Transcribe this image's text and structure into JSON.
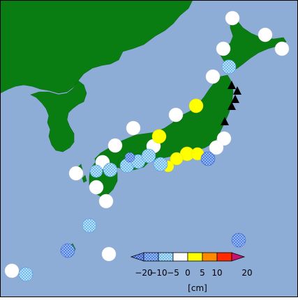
{
  "map": {
    "colors": {
      "ocean": "#8dacd6",
      "land": "#0a7d12",
      "frame": "#000000",
      "triangle": "#000000"
    },
    "legend": {
      "bins": [
        {
          "range": "< -20",
          "color": "#1f3fae",
          "pattern": "hatch-dense"
        },
        {
          "range": "-20 to -10",
          "color": "#3d6fe0",
          "pattern": "hatch"
        },
        {
          "range": "-10 to -5",
          "color": "#7fc4f0",
          "pattern": "hatch-light"
        },
        {
          "range": "-5 to 0",
          "color": "#ffffff",
          "pattern": "solid"
        },
        {
          "range": "0 to 5",
          "color": "#ffff00",
          "pattern": "solid"
        },
        {
          "range": "5 to 10",
          "color": "#ff8a00",
          "pattern": "solid"
        },
        {
          "range": "10 to 20",
          "color": "#ff2a00",
          "pattern": "solid"
        },
        {
          "range": "> 20",
          "color": "#c8146e",
          "pattern": "solid"
        }
      ],
      "tick_labels": [
        "−20",
        "−10",
        "−5",
        "0",
        "5",
        "10",
        "20"
      ],
      "unit": "[cm]"
    },
    "markers": [
      {
        "name": "white-marker",
        "category": "-5 to 0"
      },
      {
        "name": "white-marker",
        "category": "-5 to 0"
      },
      {
        "name": "white-marker",
        "category": "-5 to 0"
      },
      {
        "name": "white-marker",
        "category": "-5 to 0"
      },
      {
        "name": "white-marker",
        "category": "-5 to 0"
      },
      {
        "name": "white-marker",
        "category": "-5 to 0"
      },
      {
        "name": "white-marker",
        "category": "-5 to 0"
      },
      {
        "name": "white-marker",
        "category": "-5 to 0"
      },
      {
        "name": "white-marker",
        "category": "-5 to 0"
      },
      {
        "name": "white-marker",
        "category": "-5 to 0"
      },
      {
        "name": "white-marker",
        "category": "-5 to 0"
      },
      {
        "name": "white-marker",
        "category": "-5 to 0"
      },
      {
        "name": "white-marker",
        "category": "-5 to 0"
      },
      {
        "name": "white-marker",
        "category": "-5 to 0"
      },
      {
        "name": "white-marker",
        "category": "-5 to 0"
      },
      {
        "name": "white-marker",
        "category": "-5 to 0"
      },
      {
        "name": "white-marker",
        "category": "-5 to 0"
      },
      {
        "name": "yellow-marker",
        "category": "0 to 5"
      },
      {
        "name": "yellow-marker",
        "category": "0 to 5"
      },
      {
        "name": "yellow-marker",
        "category": "0 to 5"
      },
      {
        "name": "yellow-marker",
        "category": "0 to 5"
      },
      {
        "name": "yellow-marker",
        "category": "0 to 5"
      },
      {
        "name": "yellow-marker",
        "category": "0 to 5"
      },
      {
        "name": "light-blue-marker",
        "category": "-10 to -5"
      },
      {
        "name": "light-blue-marker",
        "category": "-10 to -5"
      },
      {
        "name": "light-blue-marker",
        "category": "-10 to -5"
      },
      {
        "name": "light-blue-marker",
        "category": "-10 to -5"
      },
      {
        "name": "light-blue-marker",
        "category": "-10 to -5"
      },
      {
        "name": "light-blue-marker",
        "category": "-10 to -5"
      },
      {
        "name": "light-blue-marker",
        "category": "-10 to -5"
      },
      {
        "name": "light-blue-marker",
        "category": "-10 to -5"
      },
      {
        "name": "light-blue-marker",
        "category": "-10 to -5"
      },
      {
        "name": "blue-marker",
        "category": "-20 to -10"
      },
      {
        "name": "blue-marker",
        "category": "-20 to -10"
      },
      {
        "name": "blue-marker",
        "category": "-20 to -10"
      },
      {
        "name": "blue-marker",
        "category": "-20 to -10"
      },
      {
        "name": "triangle-marker",
        "category": "symbol"
      },
      {
        "name": "triangle-marker",
        "category": "symbol"
      },
      {
        "name": "triangle-marker",
        "category": "symbol"
      },
      {
        "name": "triangle-marker",
        "category": "symbol"
      },
      {
        "name": "triangle-marker",
        "category": "symbol"
      }
    ]
  }
}
